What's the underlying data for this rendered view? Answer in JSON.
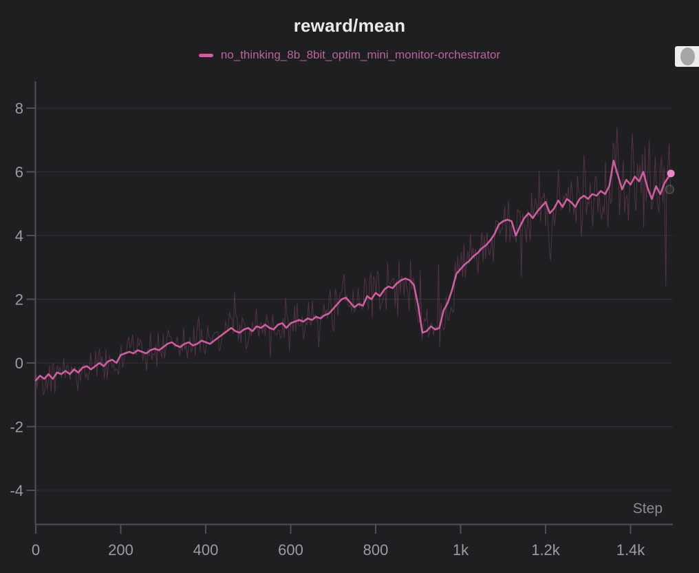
{
  "header": {
    "title": "reward/mean"
  },
  "legend": {
    "series_label": "no_thinking_8b_8bit_optim_mini_monitor-orchestrator"
  },
  "axes": {
    "x_label": "Step"
  },
  "colors": {
    "background": "#1f1f21",
    "gridline": "#313137",
    "axis_line": "#505057",
    "tick_label": "#9c9ca1",
    "step_label": "#8b8b90",
    "title_text": "#e9e9ea",
    "legend_text": "#b5649e",
    "series_pink": "#cb5fa0",
    "raw_series_pink_alpha": 0.3,
    "end_dot_pink": "#ec86c5",
    "floating_button_bg": "#ededee",
    "floating_button_glyph": "#a6a6a8"
  },
  "chart_data": {
    "type": "line",
    "title": "reward/mean",
    "xlabel": "Step",
    "ylabel": "",
    "xlim": [
      0,
      1500
    ],
    "ylim": [
      -5.1,
      8.85
    ],
    "grid": "horizontal-only",
    "legend_position": "top-center",
    "x_tick_values": [
      0,
      200,
      400,
      600,
      800,
      1000,
      1200,
      1400
    ],
    "x_tick_labels": [
      "0",
      "200",
      "400",
      "600",
      "800",
      "1k",
      "1.2k",
      "1.4k"
    ],
    "y_tick_values": [
      8,
      6,
      4,
      2,
      0,
      -2,
      -4
    ],
    "y_tick_labels": [
      "8",
      "6",
      "4",
      "2",
      "0",
      "-2",
      "-4"
    ],
    "series": [
      {
        "name": "no_thinking_8b_8bit_optim_mini_monitor-orchestrator",
        "role": "smoothed",
        "color": "#cb5fa0",
        "points": [
          [
            0,
            -0.55
          ],
          [
            10,
            -0.4
          ],
          [
            20,
            -0.5
          ],
          [
            30,
            -0.35
          ],
          [
            40,
            -0.5
          ],
          [
            50,
            -0.3
          ],
          [
            60,
            -0.35
          ],
          [
            70,
            -0.25
          ],
          [
            80,
            -0.35
          ],
          [
            90,
            -0.2
          ],
          [
            100,
            -0.3
          ],
          [
            110,
            -0.15
          ],
          [
            120,
            -0.1
          ],
          [
            130,
            -0.2
          ],
          [
            140,
            -0.1
          ],
          [
            150,
            0.0
          ],
          [
            160,
            -0.1
          ],
          [
            170,
            0.05
          ],
          [
            180,
            0.1
          ],
          [
            190,
            0.0
          ],
          [
            200,
            0.25
          ],
          [
            210,
            0.3
          ],
          [
            220,
            0.35
          ],
          [
            230,
            0.3
          ],
          [
            240,
            0.4
          ],
          [
            250,
            0.35
          ],
          [
            260,
            0.3
          ],
          [
            270,
            0.4
          ],
          [
            280,
            0.45
          ],
          [
            290,
            0.4
          ],
          [
            300,
            0.5
          ],
          [
            310,
            0.6
          ],
          [
            320,
            0.65
          ],
          [
            330,
            0.55
          ],
          [
            340,
            0.5
          ],
          [
            350,
            0.6
          ],
          [
            360,
            0.65
          ],
          [
            370,
            0.55
          ],
          [
            380,
            0.6
          ],
          [
            390,
            0.7
          ],
          [
            400,
            0.65
          ],
          [
            410,
            0.6
          ],
          [
            420,
            0.7
          ],
          [
            430,
            0.8
          ],
          [
            440,
            0.9
          ],
          [
            450,
            1.0
          ],
          [
            460,
            1.1
          ],
          [
            470,
            1.0
          ],
          [
            480,
            0.95
          ],
          [
            490,
            1.05
          ],
          [
            500,
            1.1
          ],
          [
            510,
            1.0
          ],
          [
            520,
            1.15
          ],
          [
            530,
            1.1
          ],
          [
            540,
            1.2
          ],
          [
            550,
            1.1
          ],
          [
            560,
            1.05
          ],
          [
            570,
            1.2
          ],
          [
            580,
            1.25
          ],
          [
            590,
            1.1
          ],
          [
            600,
            1.25
          ],
          [
            610,
            1.3
          ],
          [
            620,
            1.35
          ],
          [
            630,
            1.3
          ],
          [
            640,
            1.4
          ],
          [
            650,
            1.35
          ],
          [
            660,
            1.45
          ],
          [
            670,
            1.4
          ],
          [
            680,
            1.5
          ],
          [
            690,
            1.55
          ],
          [
            700,
            1.7
          ],
          [
            710,
            1.85
          ],
          [
            720,
            2.0
          ],
          [
            730,
            2.05
          ],
          [
            740,
            1.9
          ],
          [
            750,
            1.75
          ],
          [
            760,
            1.85
          ],
          [
            770,
            1.8
          ],
          [
            780,
            2.1
          ],
          [
            790,
            2.0
          ],
          [
            800,
            2.2
          ],
          [
            810,
            2.1
          ],
          [
            820,
            2.3
          ],
          [
            830,
            2.4
          ],
          [
            840,
            2.35
          ],
          [
            850,
            2.5
          ],
          [
            860,
            2.6
          ],
          [
            870,
            2.65
          ],
          [
            880,
            2.6
          ],
          [
            890,
            2.45
          ],
          [
            900,
            1.8
          ],
          [
            910,
            0.95
          ],
          [
            920,
            1.0
          ],
          [
            930,
            1.15
          ],
          [
            940,
            1.05
          ],
          [
            950,
            1.1
          ],
          [
            960,
            1.65
          ],
          [
            970,
            1.9
          ],
          [
            980,
            2.3
          ],
          [
            990,
            2.8
          ],
          [
            1000,
            2.95
          ],
          [
            1010,
            3.1
          ],
          [
            1020,
            3.2
          ],
          [
            1030,
            3.35
          ],
          [
            1040,
            3.45
          ],
          [
            1050,
            3.6
          ],
          [
            1060,
            3.7
          ],
          [
            1070,
            3.85
          ],
          [
            1080,
            4.05
          ],
          [
            1090,
            4.35
          ],
          [
            1100,
            4.45
          ],
          [
            1110,
            4.5
          ],
          [
            1120,
            4.45
          ],
          [
            1130,
            4.0
          ],
          [
            1140,
            4.3
          ],
          [
            1150,
            4.55
          ],
          [
            1160,
            4.7
          ],
          [
            1170,
            4.55
          ],
          [
            1180,
            4.75
          ],
          [
            1190,
            4.9
          ],
          [
            1200,
            5.05
          ],
          [
            1210,
            4.7
          ],
          [
            1220,
            4.85
          ],
          [
            1230,
            5.1
          ],
          [
            1240,
            4.9
          ],
          [
            1250,
            5.15
          ],
          [
            1260,
            5.05
          ],
          [
            1270,
            4.9
          ],
          [
            1280,
            5.15
          ],
          [
            1290,
            5.25
          ],
          [
            1300,
            5.15
          ],
          [
            1310,
            5.3
          ],
          [
            1320,
            5.25
          ],
          [
            1330,
            5.4
          ],
          [
            1340,
            5.3
          ],
          [
            1350,
            5.55
          ],
          [
            1360,
            6.35
          ],
          [
            1370,
            5.9
          ],
          [
            1380,
            5.45
          ],
          [
            1390,
            5.75
          ],
          [
            1400,
            5.6
          ],
          [
            1410,
            5.85
          ],
          [
            1420,
            5.7
          ],
          [
            1430,
            6.0
          ],
          [
            1440,
            5.5
          ],
          [
            1450,
            5.15
          ],
          [
            1460,
            5.55
          ],
          [
            1470,
            5.3
          ],
          [
            1480,
            5.65
          ],
          [
            1495,
            5.95
          ]
        ]
      },
      {
        "name": "no_thinking_8b_8bit_optim_mini_monitor-orchestrator (raw)",
        "role": "noisy-raw",
        "color": "#cb5fa0",
        "opacity": 0.3,
        "derived_from": "smoothed series plus noise",
        "noise_amplitude_range": [
          0.42,
          1.05
        ],
        "spike_points": [
          [
            905,
            2.9
          ],
          [
            948,
            3.1
          ],
          [
            1143,
            2.7
          ],
          [
            1212,
            3.2
          ],
          [
            1368,
            7.4
          ],
          [
            1404,
            7.2
          ],
          [
            1444,
            7.0
          ],
          [
            1483,
            2.4
          ]
        ]
      }
    ],
    "end_marker": {
      "step": 1495,
      "value": 5.95,
      "color": "#ec86c5"
    },
    "ghost_end_marker": {
      "step": 1492,
      "value": 5.45,
      "color": "#9a9a9a"
    }
  }
}
